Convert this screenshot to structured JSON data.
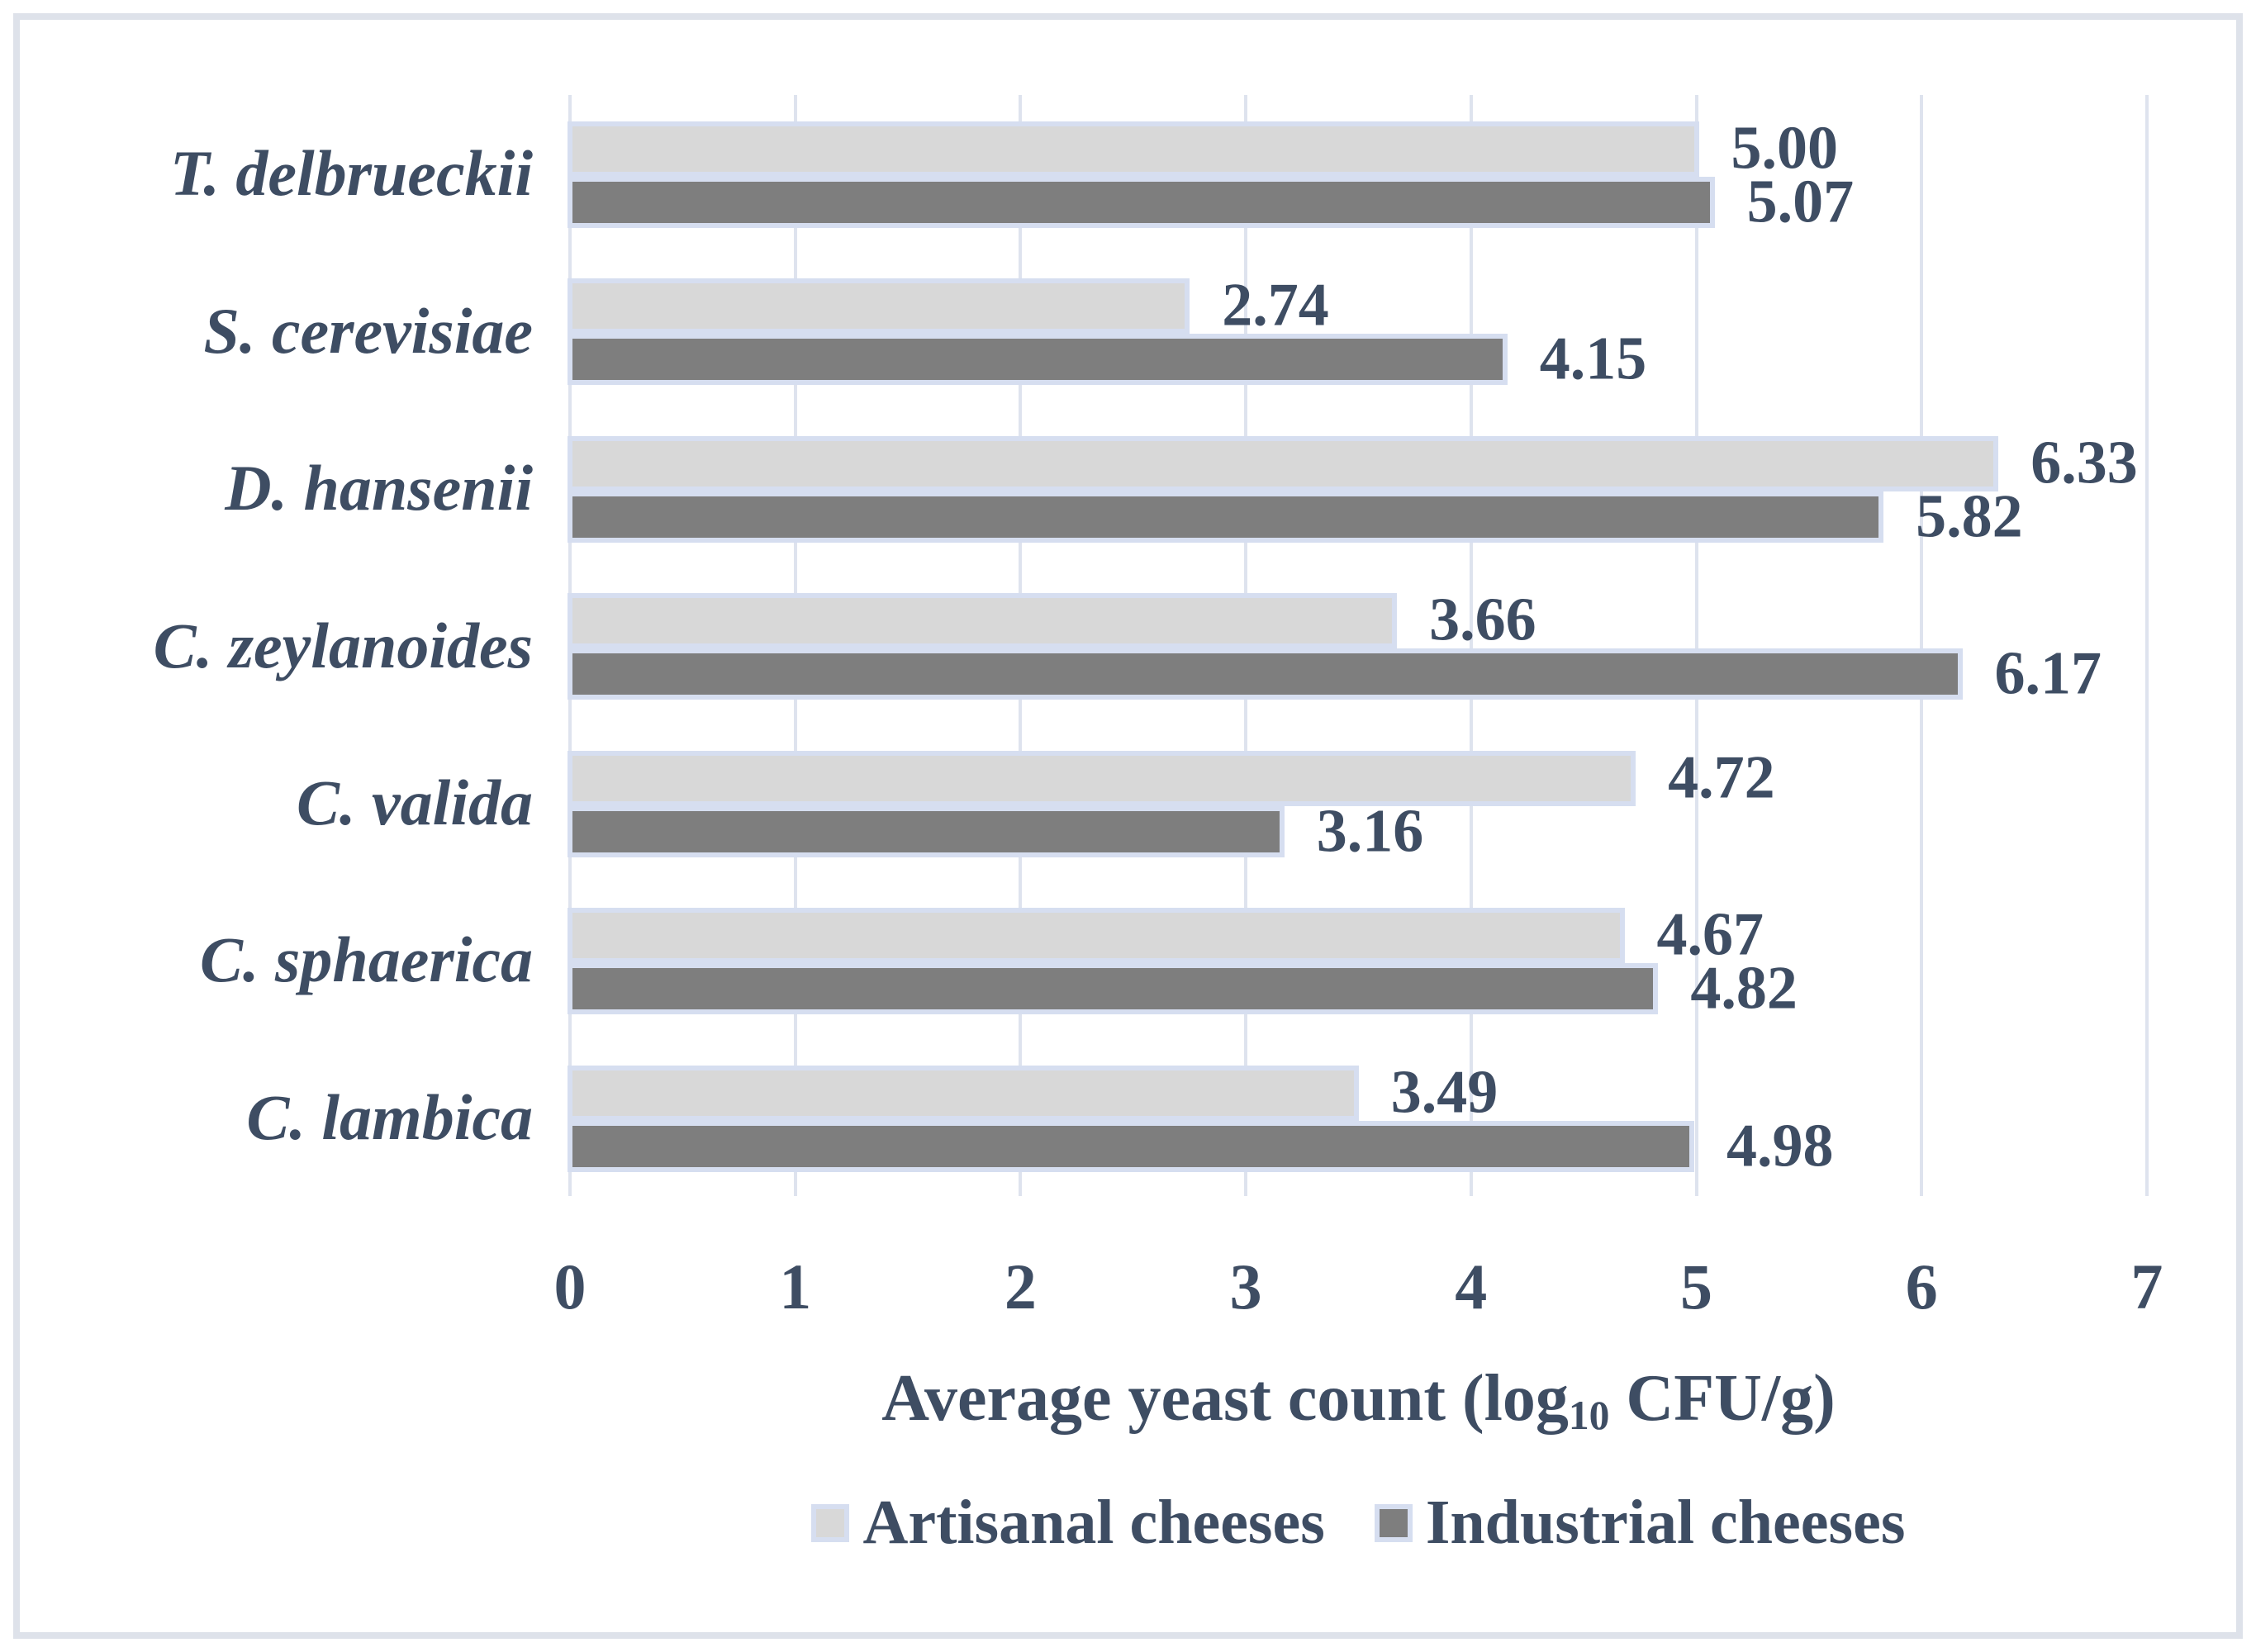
{
  "chart_data": {
    "type": "bar",
    "orientation": "horizontal",
    "categories": [
      "T. delbrueckii",
      "S. cerevisiae",
      "D. hansenii",
      "C. zeylanoides",
      "C. valida",
      "C. sphaerica",
      "C. lambica"
    ],
    "series": [
      {
        "name": "Artisanal cheeses",
        "color": "#d8d8d8",
        "values": [
          5.0,
          2.74,
          6.33,
          3.66,
          4.72,
          4.67,
          3.49
        ],
        "labels": [
          "5.00",
          "2.74",
          "6.33",
          "3.66",
          "4.72",
          "4.67",
          "3.49"
        ]
      },
      {
        "name": "Industrial cheeses",
        "color": "#7e7e7e",
        "values": [
          5.07,
          4.15,
          5.82,
          6.17,
          3.16,
          4.82,
          4.98
        ],
        "labels": [
          "5.07",
          "4.15",
          "5.82",
          "6.17",
          "3.16",
          "4.82",
          "4.98"
        ]
      }
    ],
    "xlabel": "Average yeast count (log10 CFU/g)",
    "xlabel_parts": {
      "pre": "Average yeast count (log",
      "sub": "10",
      "post": " CFU/g)"
    },
    "xlim": [
      0,
      7
    ],
    "xticks": [
      "0",
      "1",
      "2",
      "3",
      "4",
      "5",
      "6",
      "7"
    ],
    "grid": true,
    "legend_position": "bottom"
  },
  "styles": {
    "text_color": "#3e4d63",
    "bar_border_color": "#d6def0",
    "gridline_color": "#dee3ee",
    "axis_line_color": "#dee3ee",
    "outer_border_color": "#dee2ea",
    "background": "#ffffff"
  }
}
